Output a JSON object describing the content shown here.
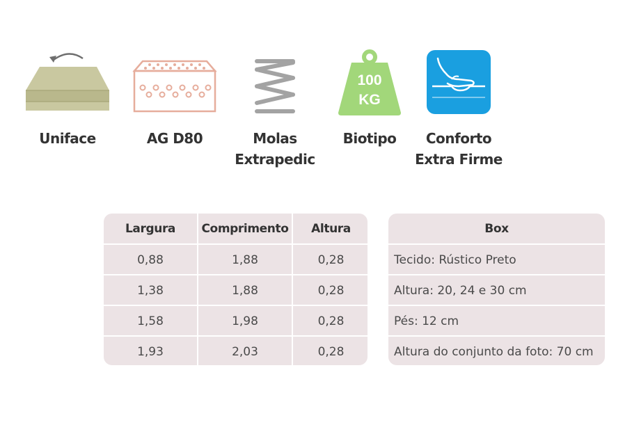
{
  "features": [
    {
      "icon": "mattress-flip-icon",
      "lines": [
        "Uniface"
      ]
    },
    {
      "icon": "foam-layer-icon",
      "lines": [
        "AG D80"
      ]
    },
    {
      "icon": "spring-icon",
      "lines": [
        "Molas",
        "Extrapedic"
      ]
    },
    {
      "icon": "weight-icon",
      "weight_top": "100",
      "weight_bottom": "KG",
      "lines": [
        "Biotipo"
      ]
    },
    {
      "icon": "hand-press-icon",
      "lines": [
        "Conforto",
        "Extra Firme"
      ]
    }
  ],
  "dimensions": {
    "headers": [
      "Largura",
      "Comprimento",
      "Altura"
    ],
    "rows": [
      [
        "0,88",
        "1,88",
        "0,28"
      ],
      [
        "1,38",
        "1,88",
        "0,28"
      ],
      [
        "1,58",
        "1,98",
        "0,28"
      ],
      [
        "1,93",
        "2,03",
        "0,28"
      ]
    ]
  },
  "box": {
    "header": "Box",
    "rows": [
      "Tecido: Rústico Preto",
      "Altura: 20, 24 e 30 cm",
      "Pés: 12 cm",
      "Altura do conjunto da foto: 70 cm"
    ]
  },
  "colors": {
    "mattress": "#c5c49b",
    "foam": "#e6ad9c",
    "spring": "#a3a3a3",
    "weight": "#a2d77a",
    "comfort": "#1a9fe0",
    "table_bg": "#ece3e5"
  }
}
